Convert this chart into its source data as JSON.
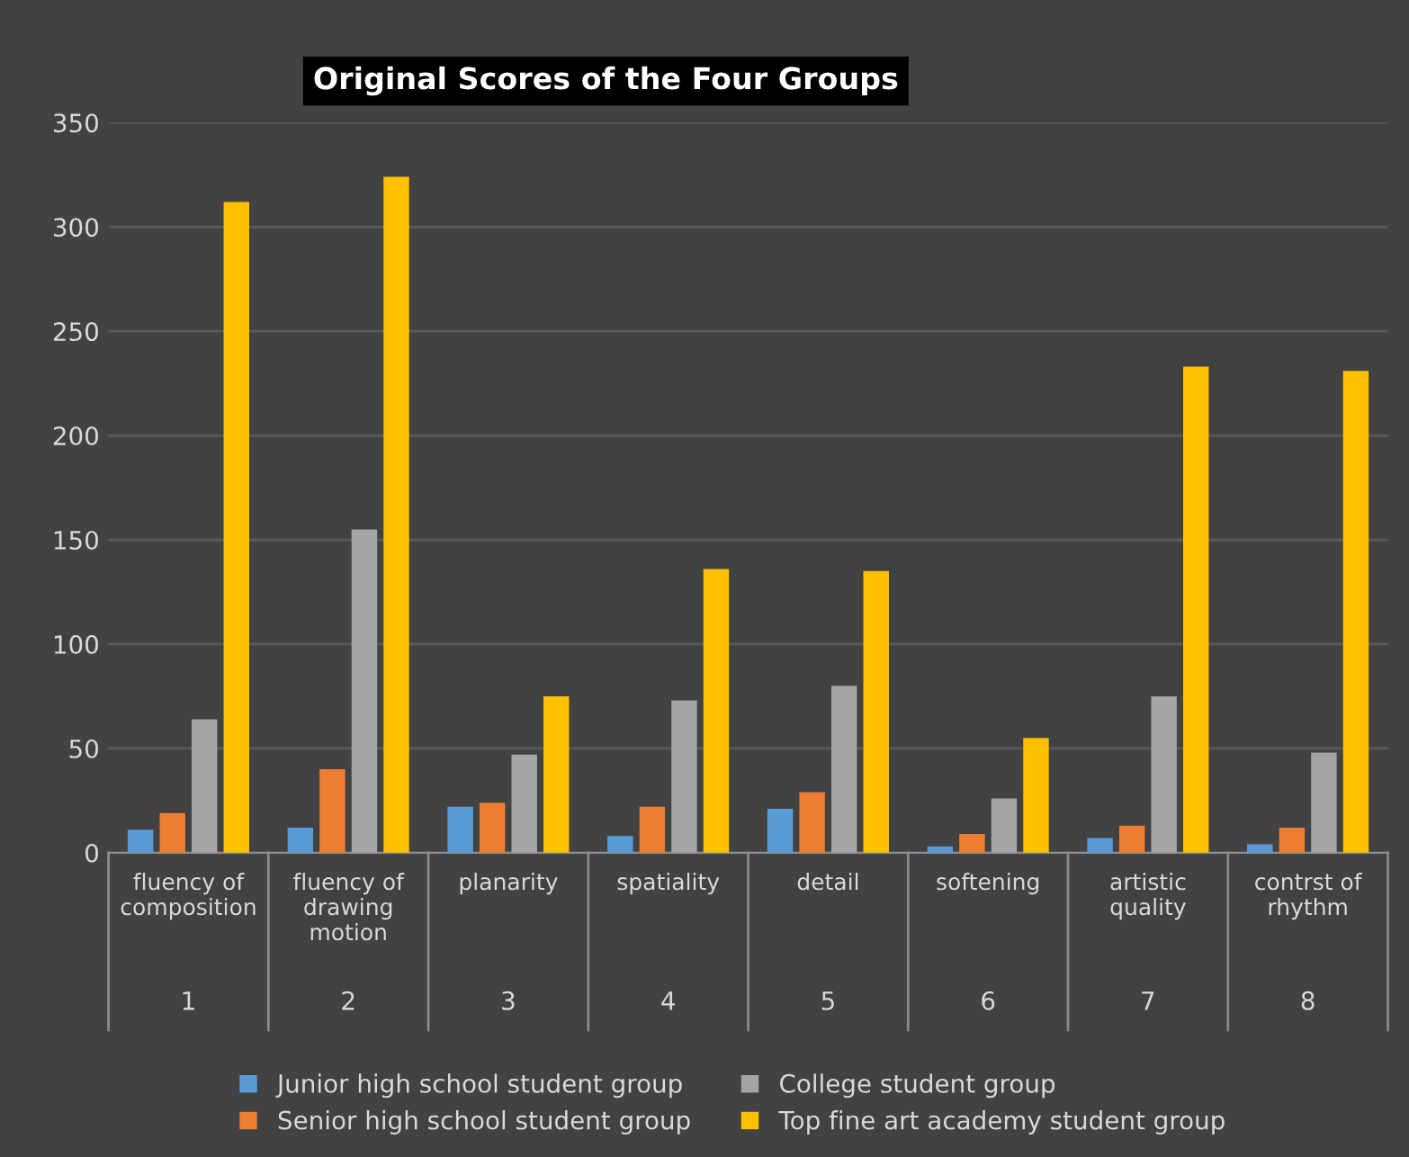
{
  "chart_data": {
    "type": "bar",
    "title": "Original Scores of the Four Groups",
    "categories": [
      "fluency of composition",
      "fluency of drawing motion",
      "planarity",
      "spatiality",
      "detail",
      "softening",
      "artistic quality",
      "contrst of rhythm"
    ],
    "series": [
      {
        "name": "Junior high school student group",
        "color": "#5b9bd5",
        "values": [
          11,
          12,
          22,
          8,
          21,
          3,
          7,
          4
        ]
      },
      {
        "name": "Senior high school student group",
        "color": "#ed7d31",
        "values": [
          19,
          40,
          24,
          22,
          29,
          9,
          13,
          12
        ]
      },
      {
        "name": "College student group",
        "color": "#a5a5a5",
        "values": [
          64,
          155,
          47,
          73,
          80,
          26,
          75,
          48
        ]
      },
      {
        "name": "Top fine art academy student group",
        "color": "#ffc000",
        "values": [
          312,
          324,
          75,
          136,
          135,
          55,
          233,
          231
        ]
      }
    ],
    "annotations": [
      "1",
      "2",
      "3",
      "4",
      "5",
      "6",
      "7",
      "8"
    ],
    "ylim": [
      0,
      350
    ],
    "yticks": [
      0,
      50,
      100,
      150,
      200,
      250,
      300,
      350
    ],
    "grid": "y",
    "legend": "bottom"
  }
}
